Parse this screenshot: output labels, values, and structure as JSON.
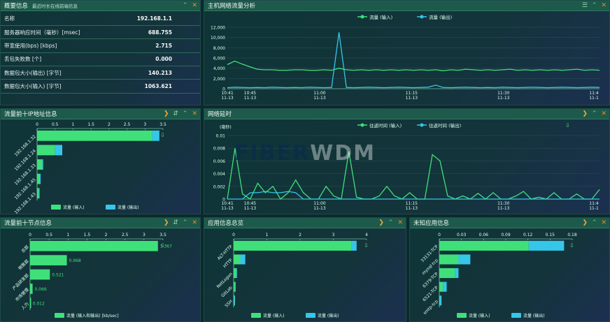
{
  "summary": {
    "title": "概要信息",
    "subtitle": "最近时长在线前端信息",
    "rows": [
      {
        "label": "名称",
        "value": "192.168.1.1"
      },
      {
        "label": "服务器响应时间（毫秒）[msec]",
        "value": "688.755"
      },
      {
        "label": "带宽使用(bps) [kbps]",
        "value": "2.715"
      },
      {
        "label": "丢包失败数 [个]",
        "value": "0.000"
      },
      {
        "label": "数据包大小(输出) [字节]",
        "value": "140.213"
      },
      {
        "label": "数据包大小(输入) [字节]",
        "value": "1063.621"
      }
    ]
  },
  "host_traffic": {
    "title": "主机网络流量分析",
    "chart_data": {
      "type": "line",
      "title": "",
      "legend": [
        "流量 (输入)",
        "流量 (输出)"
      ],
      "legend_position": "top-center",
      "x_labels": [
        [
          "10:41",
          "11-13"
        ],
        [
          "10:45",
          "11-13"
        ],
        [
          "11:00",
          "11-13"
        ],
        [
          "11:15",
          "11-13"
        ],
        [
          "11:30",
          "11-13"
        ],
        [
          "11:4",
          "11-1"
        ]
      ],
      "ylim": [
        0,
        12000
      ],
      "y_ticks": [
        0,
        2000,
        4000,
        6000,
        8000,
        10000,
        12000
      ],
      "series": [
        {
          "name": "流量 (输入)",
          "color": "#3fe07a",
          "values": [
            4700,
            5400,
            4800,
            4300,
            3800,
            3700,
            3700,
            3600,
            3600,
            3700,
            3700,
            3600,
            3600,
            3700,
            3600,
            4000,
            3700,
            3600,
            3700,
            3600,
            3700,
            3600,
            3700,
            3600,
            3700,
            3600,
            3700,
            3600,
            3700,
            3500,
            3700,
            3600,
            3800,
            3700,
            3600,
            3700,
            3600,
            3700,
            3800,
            3600,
            3700,
            3600,
            3700,
            3600,
            3700,
            3600,
            3700,
            3800,
            3600,
            3700,
            3600
          ]
        },
        {
          "name": "流量 (输出)",
          "color": "#36c6e8",
          "values": [
            200,
            300,
            250,
            200,
            250,
            200,
            300,
            250,
            200,
            250,
            200,
            300,
            250,
            200,
            250,
            11000,
            250,
            200,
            250,
            300,
            250,
            200,
            250,
            300,
            250,
            200,
            250,
            300,
            700,
            250,
            200,
            250,
            300,
            250,
            200,
            250,
            200,
            300,
            250,
            200,
            250,
            300,
            250,
            200,
            250,
            300,
            250,
            200,
            250,
            300,
            250
          ]
        }
      ]
    }
  },
  "ip_info": {
    "title": "流量前十IP地址信息",
    "chart_data": {
      "type": "bar",
      "orientation": "horizontal",
      "categories": [
        "192.168.1.32",
        "192.168.1.24",
        "192.168.1.33",
        "192.168.1.45",
        "192.168.1.43"
      ],
      "x_ticks": [
        "0",
        "0.5",
        "1",
        "1.5",
        "2",
        "2.5",
        "3",
        "3.5"
      ],
      "xlim": [
        0,
        3.5
      ],
      "series": [
        {
          "name": "流量 (输入)",
          "color": "#3fe07a",
          "values": [
            3.2,
            0.5,
            0.15,
            0.08,
            0.05
          ]
        },
        {
          "name": "流量 (输出)",
          "color": "#36c6e8",
          "values": [
            0.2,
            0.2,
            0.02,
            0.02,
            0.01
          ]
        }
      ]
    }
  },
  "network_delay": {
    "title": "网络延时",
    "ylabel": "(毫秒)",
    "chart_data": {
      "type": "area",
      "legend": [
        "往返时间 (输入)",
        "往返时间 (输出)"
      ],
      "legend_position": "top-center",
      "x_labels": [
        [
          "10:41",
          "11-13"
        ],
        [
          "10:45",
          "11-13"
        ],
        [
          "11:00",
          "11-13"
        ],
        [
          "11:15",
          "11-13"
        ],
        [
          "11:30",
          "11-13"
        ],
        [
          "11:4",
          "11-1"
        ]
      ],
      "ylim": [
        0,
        0.01
      ],
      "y_ticks": [
        "0",
        "0.002",
        "0.004",
        "0.006",
        "0.008",
        "0.01"
      ],
      "series": [
        {
          "name": "往返时间 (输入)",
          "color": "#3fe07a",
          "values": [
            0,
            0.008,
            0.0008,
            0,
            0.0025,
            0.001,
            0.002,
            0,
            0.001,
            0.003,
            0.001,
            0,
            0,
            0.002,
            0.0005,
            0,
            0.0075,
            0.0003,
            0,
            0,
            0.0005,
            0.002,
            0.0005,
            0,
            0.001,
            0,
            0,
            0.007,
            0.006,
            0.0005,
            0,
            0.0005,
            0,
            0.0009,
            0,
            0.001,
            0,
            0,
            0.0005,
            0.0012,
            0,
            0.0003,
            0,
            0.001,
            0,
            0,
            0.0008,
            0,
            0,
            0.0015
          ]
        },
        {
          "name": "往返时间 (输出)",
          "color": "#36c6e8",
          "values": [
            0,
            0,
            0,
            0.001,
            0.001,
            0.0012,
            0.001,
            0.001,
            0.0012,
            0.001,
            0,
            0,
            0,
            0,
            0,
            0,
            0,
            0,
            0,
            0,
            0,
            0,
            0,
            0,
            0,
            0,
            0,
            0,
            0,
            0,
            0,
            0,
            0,
            0,
            0,
            0,
            0,
            0,
            0,
            0,
            0,
            0,
            0,
            0,
            0,
            0,
            0,
            0,
            0,
            0
          ]
        }
      ]
    }
  },
  "top_nodes": {
    "title": "流量前十节点信息",
    "chart_data": {
      "type": "bar",
      "orientation": "horizontal",
      "categories": [
        "总部",
        "销售部",
        "产品研发部",
        "市场管理",
        "人力"
      ],
      "x_ticks": [
        "0",
        "0.5",
        "1",
        "1.5",
        "2",
        "2.5",
        "3",
        "3.5"
      ],
      "xlim": [
        0,
        3.5
      ],
      "values": [
        3.367,
        0.968,
        0.521,
        0.066,
        0.012
      ],
      "value_labels": [
        "3.367",
        "0.968",
        "0.521",
        "0.066",
        "0.012"
      ],
      "legend": [
        "流量 (输入和输出) [kb/sec]"
      ]
    }
  },
  "app_info": {
    "title": "应用信息总览",
    "chart_data": {
      "type": "bar",
      "orientation": "horizontal",
      "categories": [
        "ALT-HTTP",
        "HTTP",
        "NetLogon",
        "GitLab",
        "SSH"
      ],
      "x_ticks": [
        "0",
        "1",
        "2",
        "3",
        "4"
      ],
      "xlim": [
        0,
        4
      ],
      "series": [
        {
          "name": "流量 (输入)",
          "color": "#3fe07a",
          "values": [
            3.55,
            0.2,
            0.08,
            0.04,
            0.02
          ]
        },
        {
          "name": "流量 (输出)",
          "color": "#36c6e8",
          "values": [
            0.15,
            0.15,
            0.02,
            0.01,
            0.01
          ]
        }
      ]
    }
  },
  "unknown_app": {
    "title": "未知应用信息",
    "chart_data": {
      "type": "bar",
      "orientation": "horizontal",
      "categories": [
        "33131-TCP",
        "mysql-tcp",
        "6379-TCP",
        "6521-TCP",
        "smtp-tcp"
      ],
      "x_ticks": [
        "0",
        "0.03",
        "0.06",
        "0.09",
        "0.12",
        "0.15",
        "0.18"
      ],
      "xlim": [
        0,
        0.18
      ],
      "series": [
        {
          "name": "流量 (输入)",
          "color": "#3fe07a",
          "values": [
            0.121,
            0.026,
            0.021,
            0.005,
            0.001
          ]
        },
        {
          "name": "流量 (输出)",
          "color": "#36c6e8",
          "values": [
            0.048,
            0.016,
            0.005,
            0.005,
            0.002
          ]
        }
      ]
    }
  },
  "watermark": {
    "left": "FIBER",
    "right": "WDM"
  }
}
